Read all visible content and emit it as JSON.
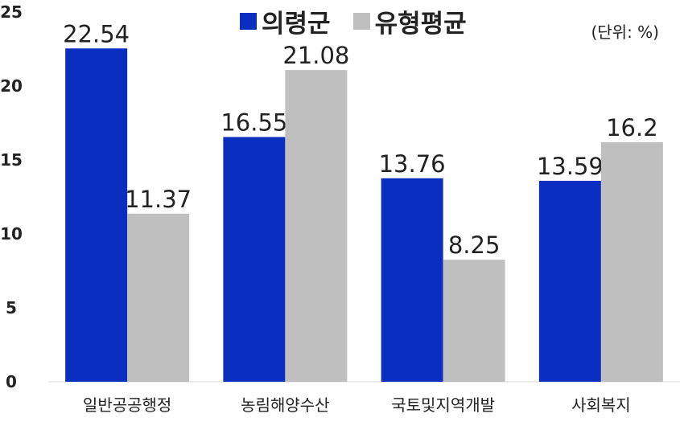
{
  "chart_data": {
    "type": "bar",
    "categories": [
      "일반공공행정",
      "농림해양수산",
      "국토및지역개발",
      "사회복지"
    ],
    "series": [
      {
        "name": "의령군",
        "color": "#0a2ebf",
        "values": [
          22.54,
          16.55,
          13.76,
          13.59
        ]
      },
      {
        "name": "유형평균",
        "color": "#bfbfbf",
        "values": [
          11.37,
          21.08,
          8.25,
          16.2
        ]
      }
    ],
    "value_labels": [
      [
        "22.54",
        "16.55",
        "13.76",
        "13.59"
      ],
      [
        "11.37",
        "21.08",
        "8.25",
        "16.2"
      ]
    ],
    "yticks": [
      0,
      5,
      10,
      15,
      20,
      25
    ],
    "ylim": [
      0,
      25
    ],
    "unit_label": "(단위: %)",
    "grid": false,
    "legend_position": "top"
  }
}
